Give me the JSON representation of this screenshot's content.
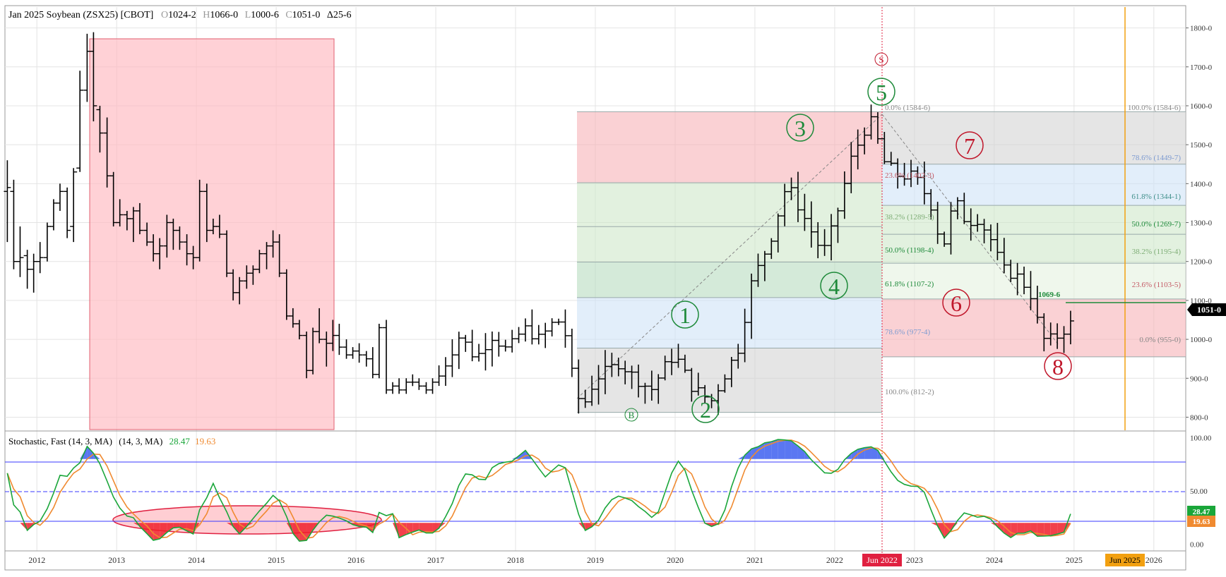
{
  "colors": {
    "up_wave": "#1e8a3a",
    "down_wave": "#c0172b",
    "bar": "#000000",
    "fib_red": "#f6b3b8",
    "fib_green": "#cfe8c9",
    "fib_blue": "#cfe3f7",
    "fib_gray": "#d3d3d3",
    "stoch_k": "#1aa63a",
    "stoch_d": "#f08a30",
    "overbought_fill": "#3d5ff0",
    "oversold_fill": "#f01f2a",
    "highlight_box": "#ffb9c0",
    "vline_red": "#e02040",
    "vline_gold": "#f2a010"
  },
  "header": {
    "title": "Jan 2025 Soybean (ZSX25) [CBOT]",
    "open_label": "O",
    "open": "1024-2",
    "high_label": "H",
    "high": "1066-0",
    "low_label": "L",
    "low": "1000-6",
    "close_label": "C",
    "close": "1051-0",
    "change": "Δ25-6"
  },
  "price_axis_labels": [
    "1800-0",
    "1700-0",
    "1600-0",
    "1500-0",
    "1400-0",
    "1300-0",
    "1200-0",
    "1100-0",
    "1000-0",
    "900-0",
    "800-0"
  ],
  "price_current": "1051-0",
  "stoch": {
    "title": "Stochastic, Fast (14, 3, MA)",
    "params": "(14, 3, MA)",
    "k_value": "28.47",
    "d_value": "19.63",
    "axis_labels": [
      "100.00",
      "50.00",
      "0.00"
    ]
  },
  "x_axis_labels": [
    "2012",
    "2013",
    "2014",
    "2015",
    "2016",
    "2017",
    "2018",
    "2019",
    "2020",
    "2021",
    "2022",
    "2023",
    "2024",
    "2025",
    "2026"
  ],
  "vline_labels": {
    "jun2022": "Jun 2022",
    "jun2025": "Jun 2025"
  },
  "annotations": {
    "waves_up": [
      "1",
      "2",
      "3",
      "4",
      "5"
    ],
    "waves_down": [
      "6",
      "7",
      "8"
    ],
    "b_marker": "B",
    "s_marker": "S",
    "level_label": "1069-6"
  },
  "fib_left": [
    {
      "label": "0.0% (1584-6)"
    },
    {
      "label": "23.6% (1402-3)"
    },
    {
      "label": "38.2% (1289-5)"
    },
    {
      "label": "50.0% (1198-4)"
    },
    {
      "label": "61.8% (1107-2)"
    },
    {
      "label": "78.6% (977-4)"
    },
    {
      "label": "100.0% (812-2)"
    }
  ],
  "fib_right": [
    {
      "label": "100.0% (1584-6)"
    },
    {
      "label": "78.6% (1449-7)"
    },
    {
      "label": "61.8% (1344-1)"
    },
    {
      "label": "50.0% (1269-7)"
    },
    {
      "label": "38.2% (1195-4)"
    },
    {
      "label": "23.6% (1103-5)"
    },
    {
      "label": "0.0% (955-0)"
    }
  ],
  "chart_data": {
    "type": "ohlc",
    "title": "Jan 2025 Soybean (ZSX25) [CBOT]",
    "period": "monthly",
    "x_range": [
      2011.6,
      2026.4
    ],
    "price_ylim": [
      770,
      1850
    ],
    "stoch_ylim": [
      -5,
      105
    ],
    "ohlc_series": [
      {
        "label": "2011-08",
        "t": 2011.63,
        "o": 1380,
        "h": 1460,
        "l": 1250,
        "c": 1390
      },
      {
        "label": "2011-09",
        "t": 2011.71,
        "o": 1380,
        "h": 1410,
        "l": 1180,
        "c": 1200
      },
      {
        "label": "2011-10",
        "t": 2011.79,
        "o": 1200,
        "h": 1290,
        "l": 1160,
        "c": 1210
      },
      {
        "label": "2011-11",
        "t": 2011.88,
        "o": 1215,
        "h": 1230,
        "l": 1130,
        "c": 1180
      },
      {
        "label": "2011-12",
        "t": 2011.96,
        "o": 1180,
        "h": 1220,
        "l": 1120,
        "c": 1200
      },
      {
        "label": "2012-01",
        "t": 2012.04,
        "o": 1200,
        "h": 1250,
        "l": 1170,
        "c": 1210
      },
      {
        "label": "2012-02",
        "t": 2012.13,
        "o": 1210,
        "h": 1300,
        "l": 1200,
        "c": 1290
      },
      {
        "label": "2012-03",
        "t": 2012.21,
        "o": 1290,
        "h": 1360,
        "l": 1280,
        "c": 1350
      },
      {
        "label": "2012-04",
        "t": 2012.29,
        "o": 1350,
        "h": 1400,
        "l": 1330,
        "c": 1380
      },
      {
        "label": "2012-05",
        "t": 2012.38,
        "o": 1380,
        "h": 1390,
        "l": 1260,
        "c": 1280
      },
      {
        "label": "2012-06",
        "t": 2012.46,
        "o": 1290,
        "h": 1440,
        "l": 1250,
        "c": 1430
      },
      {
        "label": "2012-07",
        "t": 2012.54,
        "o": 1440,
        "h": 1690,
        "l": 1430,
        "c": 1640
      },
      {
        "label": "2012-08",
        "t": 2012.63,
        "o": 1640,
        "h": 1785,
        "l": 1610,
        "c": 1740
      },
      {
        "label": "2012-09",
        "t": 2012.71,
        "o": 1740,
        "h": 1789,
        "l": 1560,
        "c": 1600
      },
      {
        "label": "2012-10",
        "t": 2012.79,
        "o": 1590,
        "h": 1600,
        "l": 1480,
        "c": 1530
      },
      {
        "label": "2012-11",
        "t": 2012.88,
        "o": 1530,
        "h": 1570,
        "l": 1390,
        "c": 1420
      },
      {
        "label": "2012-12",
        "t": 2012.96,
        "o": 1420,
        "h": 1430,
        "l": 1290,
        "c": 1300
      },
      {
        "label": "2013-01",
        "t": 2013.04,
        "o": 1300,
        "h": 1360,
        "l": 1290,
        "c": 1320
      },
      {
        "label": "2013-02",
        "t": 2013.13,
        "o": 1320,
        "h": 1330,
        "l": 1280,
        "c": 1310
      },
      {
        "label": "2013-03",
        "t": 2013.21,
        "o": 1310,
        "h": 1340,
        "l": 1250,
        "c": 1330
      },
      {
        "label": "2013-04",
        "t": 2013.29,
        "o": 1330,
        "h": 1350,
        "l": 1270,
        "c": 1280
      },
      {
        "label": "2013-05",
        "t": 2013.38,
        "o": 1280,
        "h": 1300,
        "l": 1240,
        "c": 1250
      },
      {
        "label": "2013-06",
        "t": 2013.46,
        "o": 1250,
        "h": 1270,
        "l": 1200,
        "c": 1220
      },
      {
        "label": "2013-07",
        "t": 2013.54,
        "o": 1220,
        "h": 1260,
        "l": 1180,
        "c": 1240
      },
      {
        "label": "2013-08",
        "t": 2013.63,
        "o": 1240,
        "h": 1320,
        "l": 1210,
        "c": 1300
      },
      {
        "label": "2013-09",
        "t": 2013.71,
        "o": 1300,
        "h": 1310,
        "l": 1230,
        "c": 1280
      },
      {
        "label": "2013-10",
        "t": 2013.79,
        "o": 1280,
        "h": 1290,
        "l": 1230,
        "c": 1250
      },
      {
        "label": "2013-11",
        "t": 2013.88,
        "o": 1250,
        "h": 1270,
        "l": 1190,
        "c": 1220
      },
      {
        "label": "2013-12",
        "t": 2013.96,
        "o": 1220,
        "h": 1240,
        "l": 1180,
        "c": 1210
      },
      {
        "label": "2014-01",
        "t": 2014.04,
        "o": 1210,
        "h": 1410,
        "l": 1200,
        "c": 1380
      },
      {
        "label": "2014-02",
        "t": 2014.13,
        "o": 1380,
        "h": 1400,
        "l": 1250,
        "c": 1280
      },
      {
        "label": "2014-03",
        "t": 2014.21,
        "o": 1280,
        "h": 1310,
        "l": 1270,
        "c": 1290
      },
      {
        "label": "2014-04",
        "t": 2014.29,
        "o": 1290,
        "h": 1320,
        "l": 1260,
        "c": 1270
      },
      {
        "label": "2014-05",
        "t": 2014.38,
        "o": 1270,
        "h": 1280,
        "l": 1160,
        "c": 1170
      },
      {
        "label": "2014-06",
        "t": 2014.46,
        "o": 1170,
        "h": 1180,
        "l": 1100,
        "c": 1120
      },
      {
        "label": "2014-07",
        "t": 2014.54,
        "o": 1120,
        "h": 1160,
        "l": 1090,
        "c": 1150
      },
      {
        "label": "2014-08",
        "t": 2014.63,
        "o": 1150,
        "h": 1190,
        "l": 1130,
        "c": 1170
      },
      {
        "label": "2014-09",
        "t": 2014.71,
        "o": 1170,
        "h": 1190,
        "l": 1140,
        "c": 1180
      },
      {
        "label": "2014-10",
        "t": 2014.79,
        "o": 1180,
        "h": 1230,
        "l": 1170,
        "c": 1220
      },
      {
        "label": "2014-11",
        "t": 2014.88,
        "o": 1220,
        "h": 1250,
        "l": 1180,
        "c": 1240
      },
      {
        "label": "2014-12",
        "t": 2014.96,
        "o": 1240,
        "h": 1280,
        "l": 1210,
        "c": 1250
      },
      {
        "label": "2015-01",
        "t": 2015.04,
        "o": 1250,
        "h": 1270,
        "l": 1160,
        "c": 1170
      },
      {
        "label": "2015-02",
        "t": 2015.13,
        "o": 1170,
        "h": 1180,
        "l": 1050,
        "c": 1060
      },
      {
        "label": "2015-03",
        "t": 2015.21,
        "o": 1060,
        "h": 1080,
        "l": 1030,
        "c": 1040
      },
      {
        "label": "2015-04",
        "t": 2015.29,
        "o": 1040,
        "h": 1050,
        "l": 1000,
        "c": 1010
      },
      {
        "label": "2015-05",
        "t": 2015.38,
        "o": 1010,
        "h": 1020,
        "l": 900,
        "c": 920
      },
      {
        "label": "2015-06",
        "t": 2015.46,
        "o": 920,
        "h": 1030,
        "l": 910,
        "c": 1020
      },
      {
        "label": "2015-07",
        "t": 2015.54,
        "o": 1020,
        "h": 1080,
        "l": 990,
        "c": 1000
      },
      {
        "label": "2015-08",
        "t": 2015.63,
        "o": 1000,
        "h": 1020,
        "l": 930,
        "c": 990
      },
      {
        "label": "2015-09",
        "t": 2015.71,
        "o": 990,
        "h": 1050,
        "l": 970,
        "c": 1010
      },
      {
        "label": "2015-10",
        "t": 2015.79,
        "o": 1010,
        "h": 1040,
        "l": 960,
        "c": 980
      },
      {
        "label": "2015-11",
        "t": 2015.88,
        "o": 980,
        "h": 1000,
        "l": 950,
        "c": 960
      },
      {
        "label": "2015-12",
        "t": 2015.96,
        "o": 960,
        "h": 980,
        "l": 950,
        "c": 970
      },
      {
        "label": "2016-01",
        "t": 2016.04,
        "o": 970,
        "h": 990,
        "l": 940,
        "c": 960
      },
      {
        "label": "2016-02",
        "t": 2016.13,
        "o": 960,
        "h": 970,
        "l": 930,
        "c": 950
      },
      {
        "label": "2016-03",
        "t": 2016.21,
        "o": 950,
        "h": 980,
        "l": 900,
        "c": 910
      },
      {
        "label": "2016-04",
        "t": 2016.29,
        "o": 910,
        "h": 1040,
        "l": 900,
        "c": 1030
      },
      {
        "label": "2016-05",
        "t": 2016.38,
        "o": 1030,
        "h": 1050,
        "l": 860,
        "c": 870
      },
      {
        "label": "2016-06",
        "t": 2016.46,
        "o": 870,
        "h": 890,
        "l": 860,
        "c": 880
      },
      {
        "label": "2016-07",
        "t": 2016.54,
        "o": 880,
        "h": 900,
        "l": 860,
        "c": 870
      },
      {
        "label": "2016-08",
        "t": 2016.63,
        "o": 870,
        "h": 900,
        "l": 860,
        "c": 890
      },
      {
        "label": "2016-09",
        "t": 2016.71,
        "o": 890,
        "h": 910,
        "l": 880,
        "c": 890
      },
      {
        "label": "2016-10",
        "t": 2016.79,
        "o": 890,
        "h": 900,
        "l": 870,
        "c": 880
      },
      {
        "label": "2016-11",
        "t": 2016.88,
        "o": 880,
        "h": 890,
        "l": 860,
        "c": 870
      },
      {
        "label": "2016-12",
        "t": 2016.96,
        "o": 870,
        "h": 900,
        "l": 860,
        "c": 890
      }
    ],
    "stoch_k": [],
    "stoch_d": [],
    "horizontal_levels": {
      "overbought": 80,
      "mid": 50,
      "oversold": 20
    },
    "fib_retracement_up": {
      "low": 812.25,
      "high": 1584.75
    },
    "fib_retracement_down": {
      "high": 1584.75,
      "low": 955.0
    },
    "xlabel": "",
    "ylabel": ""
  }
}
